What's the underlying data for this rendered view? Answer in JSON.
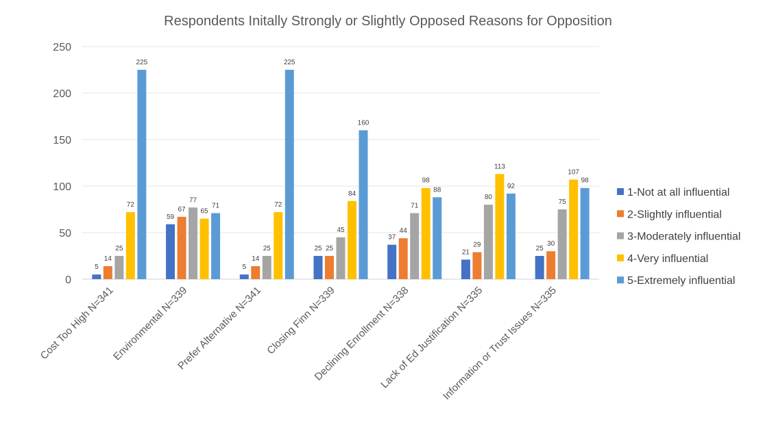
{
  "chart_data": {
    "type": "bar",
    "title": "Respondents Initally Strongly or Slightly Opposed Reasons for Opposition",
    "categories": [
      "Cost Too High N=341",
      "Environmental N=339",
      "Prefer Alternative N=341",
      "Closing Finn N=339",
      "Declining Enrollment N=338",
      "Lack of Ed Justification N=335",
      "Information or Trust Issues N=335"
    ],
    "series": [
      {
        "name": "1-Not at all influential",
        "color": "#4472C4",
        "values": [
          5,
          59,
          5,
          25,
          37,
          21,
          25
        ]
      },
      {
        "name": "2-Slightly influential",
        "color": "#ED7D31",
        "values": [
          14,
          67,
          14,
          25,
          44,
          29,
          30
        ]
      },
      {
        "name": "3-Moderately influential",
        "color": "#A5A5A5",
        "values": [
          25,
          77,
          25,
          45,
          71,
          80,
          75
        ]
      },
      {
        "name": "4-Very influential",
        "color": "#FFC000",
        "values": [
          72,
          65,
          72,
          84,
          98,
          113,
          107
        ]
      },
      {
        "name": "5-Extremely influential",
        "color": "#5B9BD5",
        "values": [
          225,
          71,
          225,
          160,
          88,
          92,
          98
        ]
      }
    ],
    "yticks": [
      0,
      50,
      100,
      150,
      200,
      250
    ],
    "ylim": [
      0,
      250
    ],
    "grid": true,
    "legend": "right",
    "data_labels": true
  }
}
